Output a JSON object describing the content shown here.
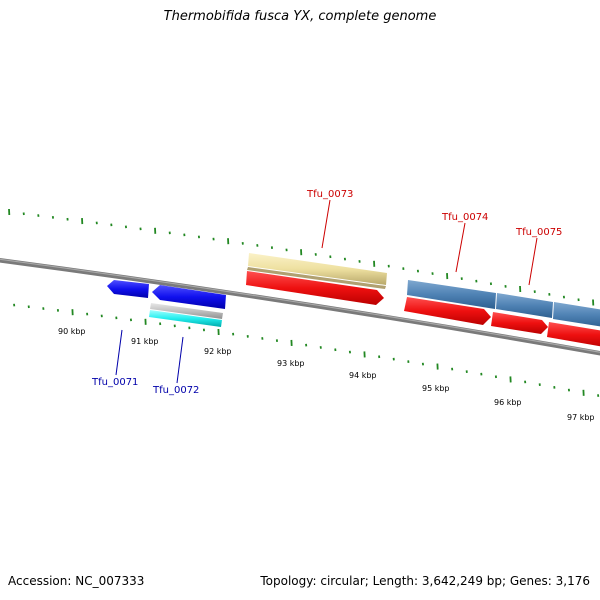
{
  "title": "Thermobifida fusca YX, complete genome",
  "footer": {
    "accession": "Accession: NC_007333",
    "summary": "Topology: circular; Length: 3,642,249 bp; Genes: 3,176"
  },
  "ticks": [
    "90 kbp",
    "91 kbp",
    "92 kbp",
    "93 kbp",
    "94 kbp",
    "95 kbp",
    "96 kbp",
    "97 kbp"
  ],
  "genes": [
    {
      "name": "Tfu_0071",
      "color": "#0000aa"
    },
    {
      "name": "Tfu_0072",
      "color": "#0000aa"
    },
    {
      "name": "Tfu_0073",
      "color": "#cc0000"
    },
    {
      "name": "Tfu_0074",
      "color": "#cc0000"
    },
    {
      "name": "Tfu_0075",
      "color": "#cc0000"
    }
  ],
  "colors": {
    "forward_cds": "#ee1111",
    "reverse_cds": "#1111ee",
    "cyan_feature": "#22eeee",
    "grey_feature": "#bbbbbb",
    "yellow_feature": "#eee0a0",
    "steelblue_feature": "#4f82b4",
    "tick_green": "#228822",
    "backbone": "#808080"
  }
}
